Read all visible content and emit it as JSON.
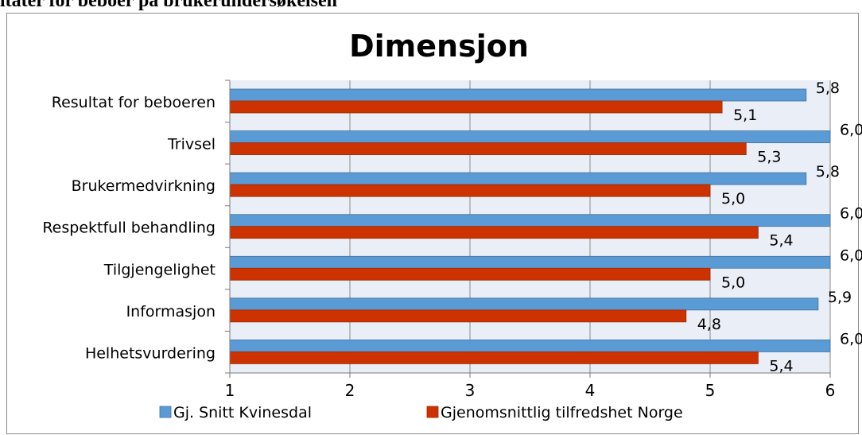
{
  "page_heading": "ltater for beboer på brukerundersøkelsen",
  "chart_data": {
    "type": "bar",
    "orientation": "horizontal",
    "title": "Dimensjon",
    "categories": [
      "Resultat for beboeren",
      "Trivsel",
      "Brukermedvirkning",
      "Respektfull behandling",
      "Tilgjengelighet",
      "Informasjon",
      "Helhetsvurdering"
    ],
    "series": [
      {
        "name": "Gj. Snitt Kvinesdal",
        "values": [
          5.8,
          6.0,
          5.8,
          6.0,
          6.0,
          5.9,
          6.0
        ],
        "labels": [
          "5,8",
          "6,0",
          "5,8",
          "6,0",
          "6,0",
          "5,9",
          "6,0"
        ],
        "color": "#5b9bd5"
      },
      {
        "name": "Gjenomsnittlig tilfredshet Norge",
        "values": [
          5.1,
          5.3,
          5.0,
          5.4,
          5.0,
          4.8,
          5.4
        ],
        "labels": [
          "5,1",
          "5,3",
          "5,0",
          "5,4",
          "5,0",
          "4,8",
          "5,4"
        ],
        "color": "#cc3300"
      }
    ],
    "xlim": [
      1,
      6
    ],
    "ticks": [
      "1",
      "2",
      "3",
      "4",
      "5",
      "6"
    ],
    "grid": true,
    "legend_position": "bottom",
    "plot_background": "#e9eef7"
  }
}
